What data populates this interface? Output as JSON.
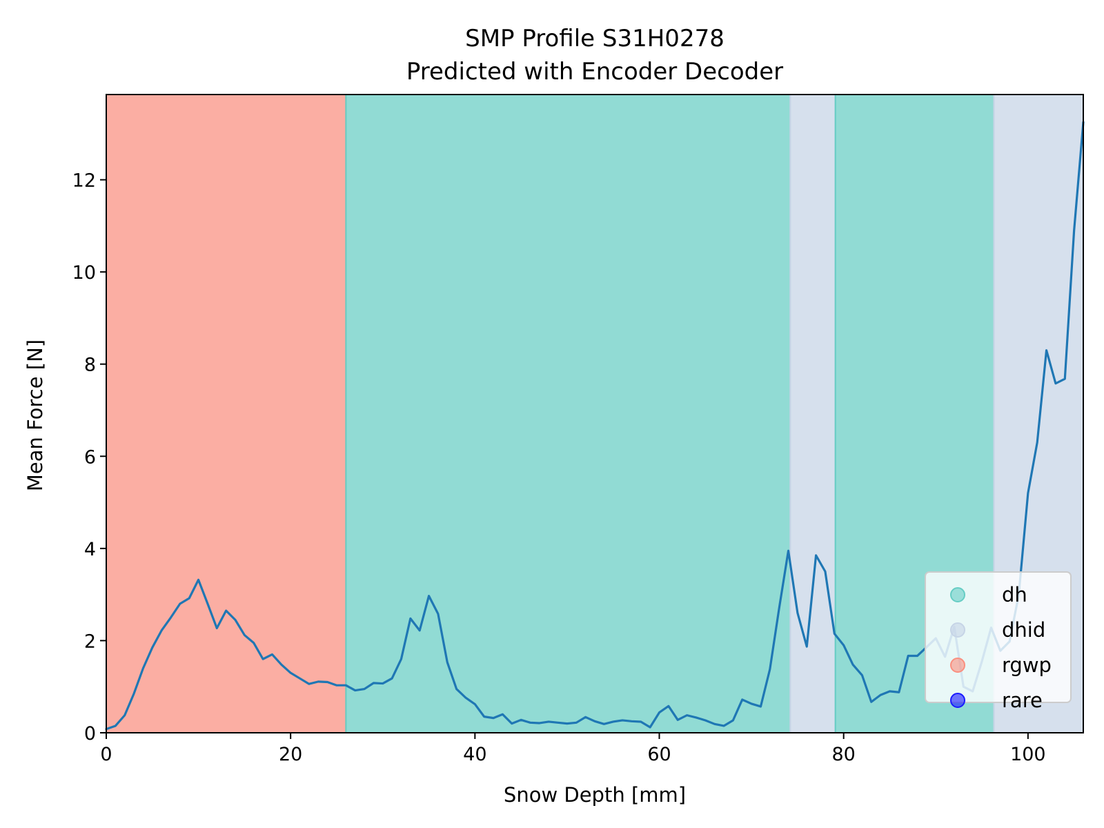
{
  "chart_data": {
    "type": "line",
    "title": "SMP Profile S31H0278",
    "subtitle": "Predicted with Encoder Decoder",
    "xlabel": "Snow Depth [mm]",
    "ylabel": "Mean Force [N]",
    "xlim": [
      0,
      106
    ],
    "ylim": [
      0,
      13.85
    ],
    "xticks": [
      0,
      20,
      40,
      60,
      80,
      100
    ],
    "yticks": [
      0,
      2,
      4,
      6,
      8,
      10,
      12
    ],
    "grid": false,
    "legend_position": "lower-right",
    "line_color": "#1f77b4",
    "classes": {
      "dh": {
        "color": "#66cdc4"
      },
      "dhid": {
        "color": "#c6d4e6"
      },
      "rgwp": {
        "color": "#fa8f7f"
      },
      "rare": {
        "color": "#1a1aff"
      }
    },
    "legend": [
      {
        "label": "dh",
        "class": "dh"
      },
      {
        "label": "dhid",
        "class": "dhid"
      },
      {
        "label": "rgwp",
        "class": "rgwp"
      },
      {
        "label": "rare",
        "class": "rare"
      }
    ],
    "regions": [
      {
        "class": "rgwp",
        "x_start": 0,
        "x_end": 26
      },
      {
        "class": "dh",
        "x_start": 26,
        "x_end": 74.2
      },
      {
        "class": "dhid",
        "x_start": 74.2,
        "x_end": 79.1
      },
      {
        "class": "dh",
        "x_start": 79.1,
        "x_end": 96.3
      },
      {
        "class": "dhid",
        "x_start": 96.3,
        "x_end": 106
      }
    ],
    "series": [
      {
        "x": [
          0,
          1,
          2,
          3,
          4,
          5,
          6,
          7,
          8,
          9,
          10,
          11,
          12,
          13,
          14,
          15,
          16,
          17,
          18,
          19,
          20,
          21,
          22,
          23,
          24,
          25,
          26,
          27,
          28,
          29,
          30,
          31,
          32,
          33,
          34,
          35,
          36,
          37,
          38,
          39,
          40,
          41,
          42,
          43,
          44,
          45,
          46,
          47,
          48,
          49,
          50,
          51,
          52,
          53,
          54,
          55,
          56,
          57,
          58,
          59,
          60,
          61,
          62,
          63,
          64,
          65,
          66,
          67,
          68,
          69,
          70,
          71,
          72,
          73,
          74,
          75,
          76,
          77,
          78,
          79,
          80,
          81,
          82,
          83,
          84,
          85,
          86,
          87,
          88,
          89,
          90,
          91,
          92,
          93,
          94,
          95,
          96,
          97,
          98,
          99,
          100,
          101,
          102,
          103,
          104,
          105,
          106
        ],
        "y": [
          0.08,
          0.15,
          0.38,
          0.85,
          1.4,
          1.85,
          2.22,
          2.5,
          2.8,
          2.92,
          3.32,
          2.8,
          2.27,
          2.65,
          2.45,
          2.12,
          1.95,
          1.6,
          1.7,
          1.48,
          1.3,
          1.18,
          1.06,
          1.11,
          1.1,
          1.03,
          1.03,
          0.92,
          0.95,
          1.08,
          1.07,
          1.18,
          1.6,
          2.48,
          2.22,
          2.97,
          2.58,
          1.53,
          0.95,
          0.76,
          0.62,
          0.35,
          0.32,
          0.4,
          0.2,
          0.28,
          0.22,
          0.21,
          0.24,
          0.22,
          0.2,
          0.22,
          0.34,
          0.25,
          0.19,
          0.24,
          0.27,
          0.25,
          0.24,
          0.12,
          0.44,
          0.58,
          0.28,
          0.38,
          0.33,
          0.27,
          0.19,
          0.15,
          0.27,
          0.72,
          0.63,
          0.57,
          1.38,
          2.7,
          3.95,
          2.6,
          1.87,
          3.85,
          3.5,
          2.15,
          1.9,
          1.48,
          1.25,
          0.67,
          0.82,
          0.9,
          0.88,
          1.67,
          1.67,
          1.86,
          2.05,
          1.65,
          2.3,
          1.0,
          0.9,
          1.55,
          2.28,
          1.78,
          1.98,
          3.0,
          5.2,
          6.3,
          8.3,
          7.58,
          7.68,
          10.9,
          13.25
        ]
      }
    ]
  }
}
